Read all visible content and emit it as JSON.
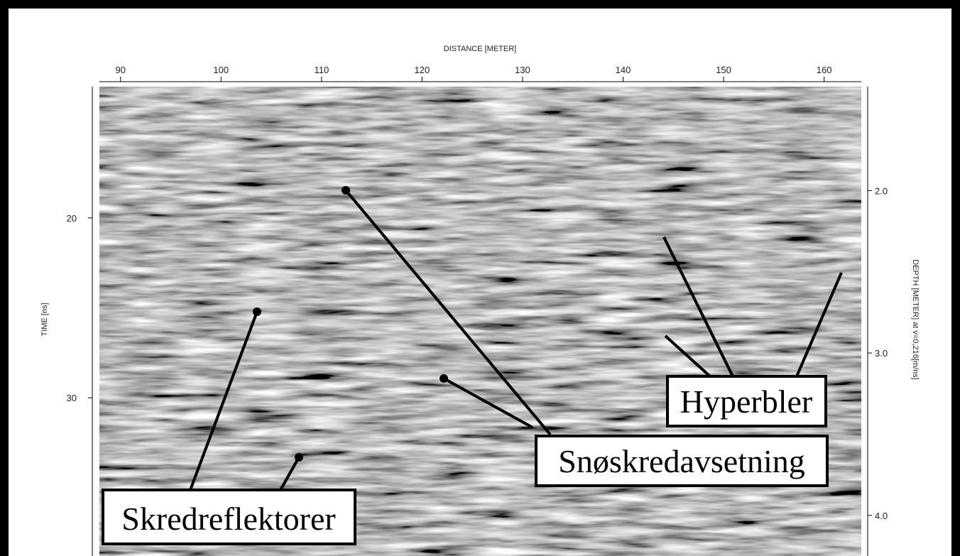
{
  "chart_data": {
    "type": "radargram",
    "x_label": "DISTANCE [METER]",
    "y_label": "TIME [ns]",
    "y2_label": "DEPTH [METER] at v=0,216[m/ns]",
    "xlim": [
      87.9,
      163.7
    ],
    "xticks": [
      90,
      100,
      110,
      120,
      130,
      140,
      150,
      160
    ],
    "ylim": [
      12.7,
      38.8
    ],
    "yticks": [
      20,
      30
    ],
    "y2lim": [
      1.36,
      4.25
    ],
    "y2ticks": [
      {
        "value": 2,
        "label": "2.0"
      },
      {
        "value": 3,
        "label": "3.0"
      },
      {
        "value": 4,
        "label": "4.0"
      }
    ],
    "annotations": [
      "Skredreflektorer",
      "Snøskredavsetning",
      "Hyperbler"
    ]
  }
}
